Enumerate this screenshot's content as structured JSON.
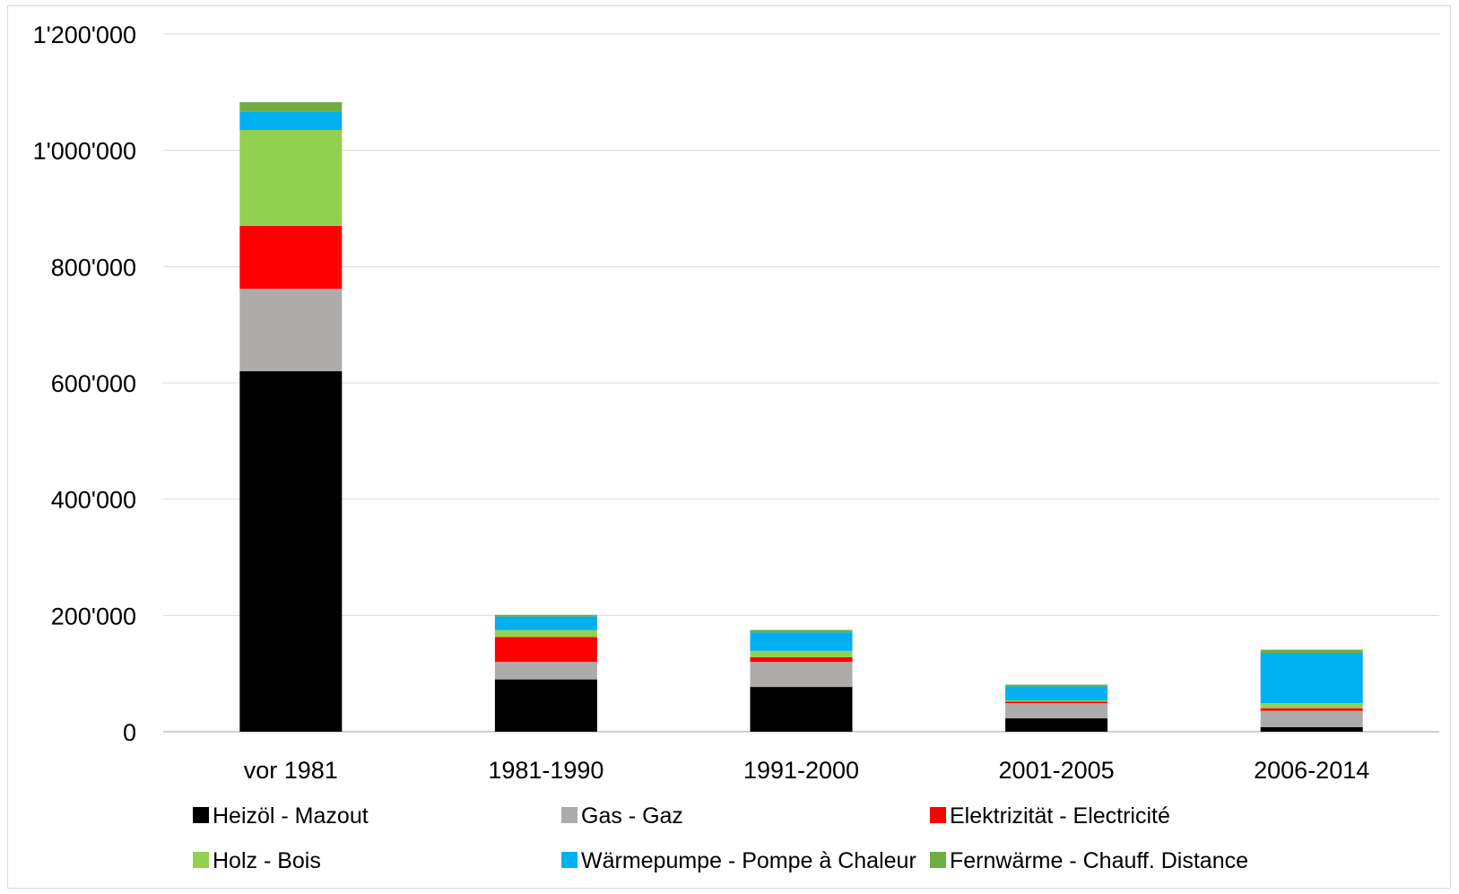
{
  "chart_data": {
    "type": "bar",
    "stacked": true,
    "title": "",
    "xlabel": "",
    "ylabel": "",
    "ylim": [
      0,
      1200000
    ],
    "yticks": [
      0,
      200000,
      400000,
      600000,
      800000,
      1000000,
      1200000
    ],
    "ytick_labels": [
      "0",
      "200'000",
      "400'000",
      "600'000",
      "800'000",
      "1'000'000",
      "1'200'000"
    ],
    "grid": true,
    "legend_position": "bottom",
    "categories": [
      "vor 1981",
      "1981-1990",
      "1991-2000",
      "2001-2005",
      "2006-2014"
    ],
    "series": [
      {
        "name": "Heizöl - Mazout",
        "color": "#000000",
        "values": [
          620000,
          90000,
          77000,
          23000,
          8000
        ]
      },
      {
        "name": "Gas - Gaz",
        "color": "#aeabab",
        "values": [
          142000,
          30000,
          43000,
          26000,
          28000
        ]
      },
      {
        "name": "Elektrizität - Electricité",
        "color": "#ff0000",
        "values": [
          108000,
          43000,
          8000,
          3000,
          4000
        ]
      },
      {
        "name": "Holz - Bois",
        "color": "#92d050",
        "values": [
          165000,
          12000,
          11000,
          2000,
          9000
        ]
      },
      {
        "name": "Wärmepumpe - Pompe à Chaleur",
        "color": "#00b0f0",
        "values": [
          32000,
          23000,
          32000,
          24000,
          86000
        ]
      },
      {
        "name": "Fernwärme - Chauff. Distance",
        "color": "#70ad47",
        "values": [
          16000,
          3000,
          4000,
          3000,
          6000
        ]
      }
    ]
  }
}
